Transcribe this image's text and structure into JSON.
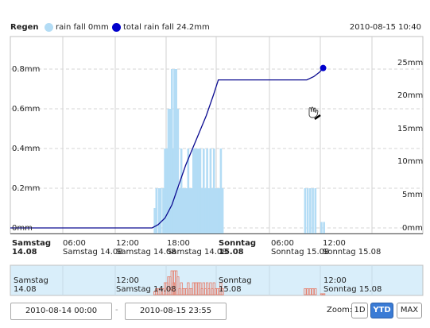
{
  "header": {
    "title": "Regen",
    "legend": [
      {
        "label": "rain fall 0mm",
        "color": "#b3dcf5"
      },
      {
        "label": "total rain fall 24.2mm",
        "color": "#0000cc"
      }
    ],
    "timestamp": "2010-08-15 10:40"
  },
  "axes": {
    "left_ticks": [
      "0mm",
      "0.2mm",
      "0.4mm",
      "0.6mm",
      "0.8mm"
    ],
    "right_ticks": [
      "0mm",
      "5mm",
      "10mm",
      "15mm",
      "20mm",
      "25mm"
    ],
    "x_ticks": [
      {
        "top": "Samstag",
        "bottom": "14.08",
        "bold": true
      },
      {
        "top": "06:00",
        "bottom": "Samstag 14.08",
        "bold": false
      },
      {
        "top": "12:00",
        "bottom": "Samstag 14.08",
        "bold": false
      },
      {
        "top": "18:00",
        "bottom": "Samstag 14.08",
        "bold": false
      },
      {
        "top": "Sonntag",
        "bottom": "15.08",
        "bold": true
      },
      {
        "top": "06:00",
        "bottom": "Sonntag 15.08",
        "bold": false
      },
      {
        "top": "12:00",
        "bottom": "Sonntag 15.08",
        "bold": false
      }
    ]
  },
  "navigator": {
    "labels": [
      {
        "top": "Samstag",
        "bottom": "14.08"
      },
      {
        "top": "12:00",
        "bottom": "Samstag 14.08"
      },
      {
        "top": "Sonntag",
        "bottom": "15.08"
      },
      {
        "top": "12:00",
        "bottom": "Sonntag 15.08"
      }
    ]
  },
  "controls": {
    "from_date": "2010-08-14 00:00",
    "separator": "-",
    "to_date": "2010-08-15 23:55",
    "zoom_label": "Zoom:",
    "zoom_buttons": [
      {
        "label": "1D",
        "active": false
      },
      {
        "label": "YTD",
        "active": true
      },
      {
        "label": "MAX",
        "active": false
      }
    ]
  },
  "chart_data": {
    "type": "line",
    "title": "Regen",
    "x_range_hours": [
      0,
      48
    ],
    "y_left_range_mm": [
      0,
      0.8
    ],
    "y_right_range_mm": [
      0,
      25
    ],
    "series": [
      {
        "name": "rain fall 0mm",
        "type": "bar",
        "axis": "left",
        "color": "#b3dcf5",
        "x_hours": [
          16.8,
          17.0,
          17.3,
          17.5,
          17.8,
          18.0,
          18.2,
          18.4,
          18.6,
          18.8,
          19.0,
          19.1,
          19.3,
          19.5,
          19.7,
          19.9,
          20.1,
          20.3,
          20.5,
          20.7,
          20.9,
          21.1,
          21.3,
          21.5,
          21.7,
          21.9,
          22.1,
          22.3,
          22.5,
          22.7,
          22.9,
          23.1,
          23.3,
          23.5,
          23.7,
          23.9,
          24.1,
          24.3,
          24.5,
          24.7,
          34.3,
          34.6,
          34.9,
          35.2,
          35.5,
          36.2,
          36.5
        ],
        "values_mm": [
          0.1,
          0.2,
          0.2,
          0.2,
          0.2,
          0.4,
          0.4,
          0.6,
          0.6,
          0.8,
          0.4,
          0.8,
          0.8,
          0.6,
          0.2,
          0.4,
          0.2,
          0.2,
          0.2,
          0.4,
          0.2,
          0.2,
          0.4,
          0.4,
          0.4,
          0.4,
          0.4,
          0.2,
          0.4,
          0.2,
          0.4,
          0.2,
          0.4,
          0.2,
          0.4,
          0.2,
          0.2,
          0.2,
          0.4,
          0.2,
          0.2,
          0.2,
          0.2,
          0.2,
          0.2,
          0.03,
          0.03
        ]
      },
      {
        "name": "total rain fall 24.2mm",
        "type": "line",
        "axis": "right",
        "color": "#0000aa",
        "x_hours": [
          0,
          16.5,
          17.2,
          18.0,
          18.8,
          19.6,
          20.4,
          21.2,
          22.0,
          22.8,
          23.6,
          24.2,
          34.5,
          35.3,
          36.0,
          36.4
        ],
        "values_mm": [
          0,
          0,
          0.5,
          1.5,
          3.5,
          6.5,
          9.5,
          12,
          14.5,
          17,
          20,
          22.4,
          22.4,
          22.9,
          23.6,
          24.2
        ]
      }
    ],
    "navigator_series_color": "#e77a66",
    "grid": true
  }
}
